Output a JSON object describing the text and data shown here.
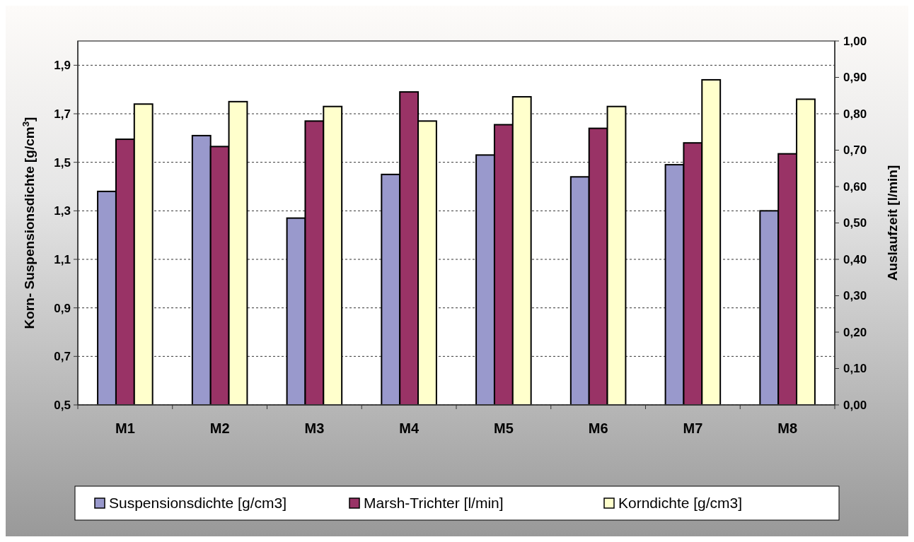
{
  "chart_data": {
    "type": "bar",
    "categories": [
      "M1",
      "M2",
      "M3",
      "M4",
      "M5",
      "M6",
      "M7",
      "M8"
    ],
    "series": [
      {
        "name": "Suspensionsdichte [g/cm3]",
        "color": "#9999cc",
        "values": [
          1.38,
          1.61,
          1.27,
          1.45,
          1.53,
          1.44,
          1.49,
          1.3
        ]
      },
      {
        "name": "Marsh-Trichter [l/min]",
        "color": "#993366",
        "axis": "y2",
        "values": [
          0.73,
          0.71,
          0.78,
          0.86,
          0.77,
          0.76,
          0.72,
          0.69
        ]
      },
      {
        "name": "Korndichte [g/cm3]",
        "color": "#ffffcc",
        "values": [
          1.74,
          1.75,
          1.73,
          1.67,
          1.77,
          1.73,
          1.84,
          1.76
        ]
      }
    ],
    "ylabel": "Korn- Suspensionsdichte [g/cm$^{3}$]",
    "y2label": "Auslaufzeit [l/min]",
    "ylim": [
      0.5,
      2.0
    ],
    "yticks": [
      {
        "value": 0.5,
        "label": "0,5"
      },
      {
        "value": 0.7,
        "label": "0,7"
      },
      {
        "value": 0.9,
        "label": "0,9"
      },
      {
        "value": 1.1,
        "label": "1,1"
      },
      {
        "value": 1.3,
        "label": "1,3"
      },
      {
        "value": 1.5,
        "label": "1,5"
      },
      {
        "value": 1.7,
        "label": "1,7"
      },
      {
        "value": 1.9,
        "label": "1,9"
      }
    ],
    "y2lim": [
      0,
      1.0
    ],
    "y2ticks": [
      {
        "value": 0,
        "label": "0,00"
      },
      {
        "value": 0.1,
        "label": "0,10"
      },
      {
        "value": 0.2,
        "label": "0,20"
      },
      {
        "value": 0.3,
        "label": "0,30"
      },
      {
        "value": 0.4,
        "label": "0,40"
      },
      {
        "value": 0.5,
        "label": "0,50"
      },
      {
        "value": 0.6,
        "label": "0,60"
      },
      {
        "value": 0.7,
        "label": "0,70"
      },
      {
        "value": 0.8,
        "label": "0,80"
      },
      {
        "value": 0.9,
        "label": "0,90"
      },
      {
        "value": 1.0,
        "label": "1,00"
      }
    ],
    "grid": "y",
    "legend": "bottom"
  }
}
